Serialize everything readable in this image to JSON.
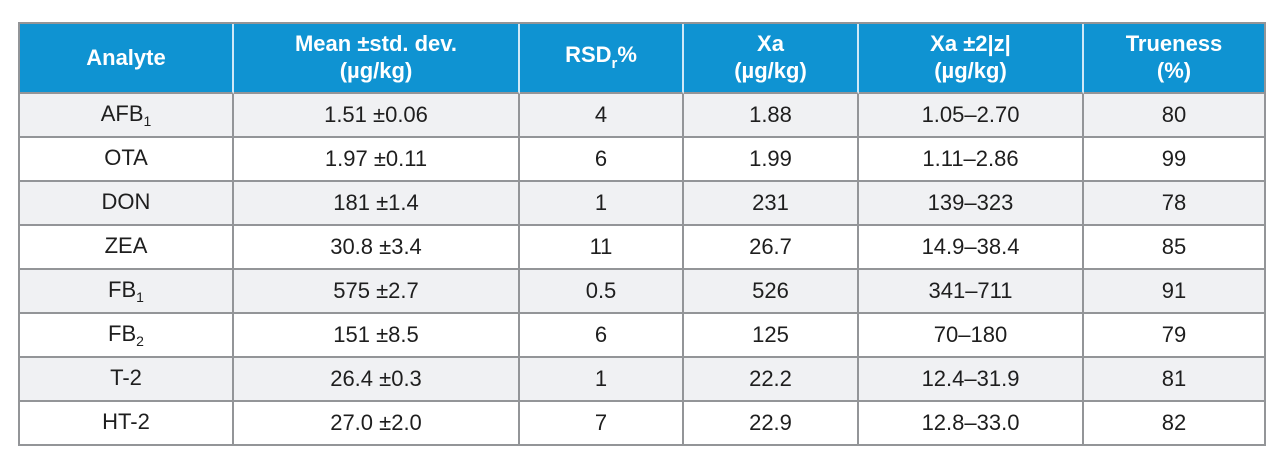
{
  "colors": {
    "header_bg": "#0f93d2",
    "header_text": "#ffffff",
    "header_divider": "#cfe9f7",
    "grid_border": "#939598",
    "row_alt_bg": "#f0f1f3",
    "row_bg": "#ffffff",
    "body_text": "#1e1e1e"
  },
  "table": {
    "headers": [
      {
        "title": "Analyte",
        "unit": ""
      },
      {
        "title": "Mean ±std. dev.",
        "unit": "(µg/kg)"
      },
      {
        "title_base": "RSD",
        "title_sub": "r",
        "title_suffix": "%",
        "unit": ""
      },
      {
        "title": "Xa",
        "unit": "(µg/kg)"
      },
      {
        "title": "Xa ±2|z|",
        "unit": "(µg/kg)"
      },
      {
        "title": "Trueness",
        "unit": "(%)"
      }
    ],
    "rows": [
      {
        "analyte": {
          "base": "AFB",
          "sub": "1"
        },
        "mean_sd": "1.51 ±0.06",
        "rsd": "4",
        "xa": "1.88",
        "xa_range": "1.05–2.70",
        "trueness": "80"
      },
      {
        "analyte": {
          "base": "OTA",
          "sub": ""
        },
        "mean_sd": "1.97 ±0.11",
        "rsd": "6",
        "xa": "1.99",
        "xa_range": "1.11–2.86",
        "trueness": "99"
      },
      {
        "analyte": {
          "base": "DON",
          "sub": ""
        },
        "mean_sd": "181 ±1.4",
        "rsd": "1",
        "xa": "231",
        "xa_range": "139–323",
        "trueness": "78"
      },
      {
        "analyte": {
          "base": "ZEA",
          "sub": ""
        },
        "mean_sd": "30.8 ±3.4",
        "rsd": "11",
        "xa": "26.7",
        "xa_range": "14.9–38.4",
        "trueness": "85"
      },
      {
        "analyte": {
          "base": "FB",
          "sub": "1"
        },
        "mean_sd": "575 ±2.7",
        "rsd": "0.5",
        "xa": "526",
        "xa_range": "341–711",
        "trueness": "91"
      },
      {
        "analyte": {
          "base": "FB",
          "sub": "2"
        },
        "mean_sd": "151 ±8.5",
        "rsd": "6",
        "xa": "125",
        "xa_range": "70–180",
        "trueness": "79"
      },
      {
        "analyte": {
          "base": "T-2",
          "sub": ""
        },
        "mean_sd": "26.4 ±0.3",
        "rsd": "1",
        "xa": "22.2",
        "xa_range": "12.4–31.9",
        "trueness": "81"
      },
      {
        "analyte": {
          "base": "HT-2",
          "sub": ""
        },
        "mean_sd": "27.0 ±2.0",
        "rsd": "7",
        "xa": "22.9",
        "xa_range": "12.8–33.0",
        "trueness": "82"
      }
    ]
  }
}
